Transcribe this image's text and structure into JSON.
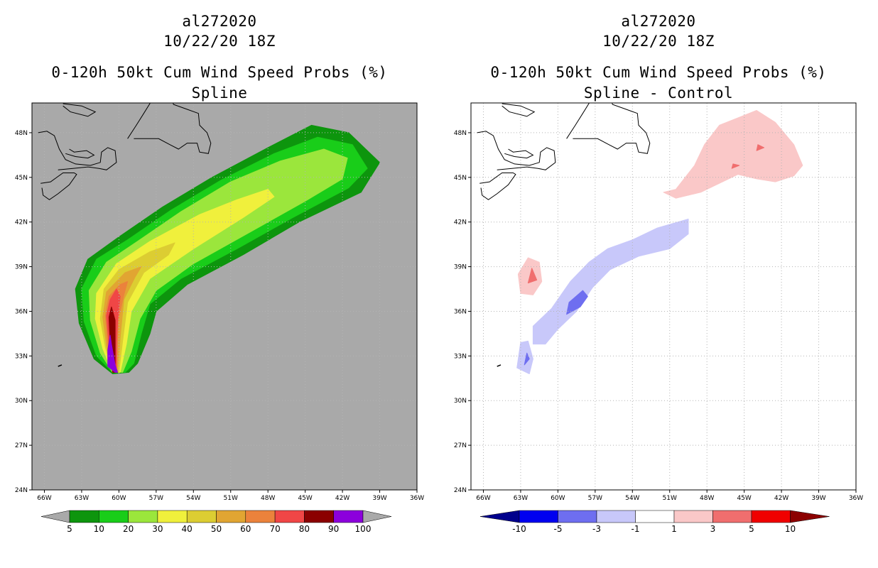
{
  "panels": [
    {
      "storm_id": "al272020",
      "datetime": "10/22/20 18Z",
      "product": "0-120h 50kt Cum Wind Speed Probs (%)",
      "subtitle": "Spline"
    },
    {
      "storm_id": "al272020",
      "datetime": "10/22/20 18Z",
      "product": "0-120h 50kt Cum Wind Speed Probs (%)",
      "subtitle": "Spline - Control"
    }
  ],
  "chart_data": [
    {
      "type": "heatmap",
      "title": "0-120h 50kt Cum Wind Speed Probs (%)",
      "subtitle": "Spline",
      "x_ticks": [
        "66W",
        "63W",
        "60W",
        "57W",
        "54W",
        "51W",
        "48W",
        "45W",
        "42W",
        "39W",
        "36W"
      ],
      "y_ticks": [
        "24N",
        "27N",
        "30N",
        "33N",
        "36N",
        "39N",
        "42N",
        "45N",
        "48N"
      ],
      "xlim": [
        -67,
        -36
      ],
      "ylim": [
        24,
        50
      ],
      "background_color": "#a9a9a9",
      "colorbar": {
        "labels": [
          "5",
          "10",
          "20",
          "30",
          "40",
          "50",
          "60",
          "70",
          "80",
          "90",
          "100"
        ],
        "colors": [
          "#0d950d",
          "#19cd19",
          "#9be63c",
          "#f0f03c",
          "#dccd32",
          "#e1a532",
          "#eb823c",
          "#f04646",
          "#8b0000",
          "#8c00dc"
        ]
      },
      "contours": [
        {
          "level": 5,
          "color": "#0d950d",
          "points": [
            [
              -59.2,
              31.9
            ],
            [
              -60.5,
              31.8
            ],
            [
              -62.0,
              32.8
            ],
            [
              -63.2,
              35.2
            ],
            [
              -63.5,
              37.5
            ],
            [
              -62.5,
              39.5
            ],
            [
              -60.0,
              41.0
            ],
            [
              -56.5,
              43.0
            ],
            [
              -52.5,
              45.0
            ],
            [
              -48.0,
              47.0
            ],
            [
              -44.5,
              48.5
            ],
            [
              -41.5,
              48.0
            ],
            [
              -39.0,
              46.0
            ],
            [
              -40.5,
              44.0
            ],
            [
              -45.5,
              42.0
            ],
            [
              -50.0,
              39.8
            ],
            [
              -54.5,
              37.8
            ],
            [
              -57.0,
              36.0
            ],
            [
              -57.5,
              34.5
            ],
            [
              -58.5,
              32.5
            ]
          ]
        },
        {
          "level": 10,
          "color": "#19cd19",
          "points": [
            [
              -59.5,
              31.9
            ],
            [
              -60.5,
              31.9
            ],
            [
              -61.8,
              33.0
            ],
            [
              -62.8,
              35.3
            ],
            [
              -63.0,
              37.5
            ],
            [
              -61.8,
              39.5
            ],
            [
              -59.3,
              40.8
            ],
            [
              -55.8,
              42.8
            ],
            [
              -51.8,
              44.8
            ],
            [
              -47.5,
              46.6
            ],
            [
              -44.0,
              47.7
            ],
            [
              -41.2,
              47.2
            ],
            [
              -40.0,
              45.6
            ],
            [
              -41.5,
              44.3
            ],
            [
              -46.0,
              42.3
            ],
            [
              -50.5,
              40.2
            ],
            [
              -55.0,
              38.2
            ],
            [
              -57.5,
              36.5
            ],
            [
              -58.2,
              34.5
            ],
            [
              -58.8,
              32.5
            ]
          ]
        },
        {
          "level": 20,
          "color": "#9be63c",
          "points": [
            [
              -59.7,
              31.9
            ],
            [
              -60.5,
              31.9
            ],
            [
              -61.5,
              33.2
            ],
            [
              -62.3,
              35.4
            ],
            [
              -62.4,
              37.4
            ],
            [
              -61.0,
              39.3
            ],
            [
              -58.5,
              40.7
            ],
            [
              -55.0,
              42.7
            ],
            [
              -51.0,
              44.7
            ],
            [
              -47.0,
              46.1
            ],
            [
              -43.5,
              46.9
            ],
            [
              -41.6,
              46.3
            ],
            [
              -42.0,
              44.9
            ],
            [
              -45.0,
              43.4
            ],
            [
              -49.5,
              41.3
            ],
            [
              -54.0,
              39.2
            ],
            [
              -57.0,
              37.4
            ],
            [
              -58.3,
              35.5
            ],
            [
              -59.0,
              33.3
            ]
          ]
        },
        {
          "level": 30,
          "color": "#f0f03c",
          "points": [
            [
              -59.9,
              31.9
            ],
            [
              -60.5,
              31.9
            ],
            [
              -61.3,
              33.5
            ],
            [
              -61.9,
              35.5
            ],
            [
              -61.8,
              37.2
            ],
            [
              -60.2,
              39.2
            ],
            [
              -57.5,
              40.7
            ],
            [
              -53.5,
              42.5
            ],
            [
              -50.5,
              43.5
            ],
            [
              -48.0,
              44.2
            ],
            [
              -47.5,
              43.7
            ],
            [
              -50.0,
              42.3
            ],
            [
              -54.0,
              40.2
            ],
            [
              -57.5,
              38.2
            ],
            [
              -59.0,
              36.0
            ],
            [
              -59.4,
              33.8
            ]
          ]
        },
        {
          "level": 40,
          "color": "#dccd32",
          "points": [
            [
              -60.0,
              31.9
            ],
            [
              -60.5,
              31.9
            ],
            [
              -61.1,
              33.6
            ],
            [
              -61.5,
              35.5
            ],
            [
              -61.2,
              37.5
            ],
            [
              -60.0,
              38.8
            ],
            [
              -57.5,
              40.0
            ],
            [
              -55.5,
              40.6
            ],
            [
              -56.0,
              39.8
            ],
            [
              -58.0,
              38.6
            ],
            [
              -59.3,
              36.6
            ],
            [
              -59.7,
              34.0
            ]
          ]
        },
        {
          "level": 50,
          "color": "#e1a532",
          "points": [
            [
              -60.1,
              31.9
            ],
            [
              -60.5,
              31.9
            ],
            [
              -61.0,
              33.7
            ],
            [
              -61.3,
              35.6
            ],
            [
              -61.0,
              37.3
            ],
            [
              -59.5,
              38.6
            ],
            [
              -58.2,
              39.0
            ],
            [
              -58.7,
              38.3
            ],
            [
              -59.6,
              36.8
            ],
            [
              -59.9,
              34.2
            ]
          ]
        },
        {
          "level": 60,
          "color": "#eb823c",
          "points": [
            [
              -60.2,
              31.9
            ],
            [
              -60.5,
              31.9
            ],
            [
              -60.9,
              33.8
            ],
            [
              -61.1,
              35.7
            ],
            [
              -60.8,
              37.0
            ],
            [
              -59.9,
              37.8
            ],
            [
              -59.3,
              38.0
            ],
            [
              -59.6,
              37.1
            ],
            [
              -60.0,
              35.6
            ],
            [
              -60.1,
              34.0
            ]
          ]
        },
        {
          "level": 70,
          "color": "#f04646",
          "points": [
            [
              -60.2,
              31.9
            ],
            [
              -60.5,
              31.9
            ],
            [
              -60.8,
              33.8
            ],
            [
              -61.0,
              35.7
            ],
            [
              -60.7,
              36.8
            ],
            [
              -60.2,
              37.5
            ],
            [
              -59.9,
              37.0
            ],
            [
              -60.1,
              35.4
            ],
            [
              -60.2,
              33.8
            ]
          ]
        },
        {
          "level": 80,
          "color": "#8b0000",
          "points": [
            [
              -60.3,
              31.9
            ],
            [
              -60.5,
              31.9
            ],
            [
              -60.7,
              33.8
            ],
            [
              -60.8,
              35.6
            ],
            [
              -60.6,
              36.3
            ],
            [
              -60.3,
              35.4
            ],
            [
              -60.3,
              33.6
            ]
          ]
        },
        {
          "level": 90,
          "color": "#8c00dc",
          "points": [
            [
              -60.3,
              31.9
            ],
            [
              -60.1,
              31.9
            ],
            [
              -60.3,
              32.4
            ],
            [
              -60.6,
              33.8
            ],
            [
              -60.7,
              34.4
            ],
            [
              -60.9,
              33.4
            ],
            [
              -60.9,
              32.3
            ]
          ]
        }
      ]
    },
    {
      "type": "heatmap",
      "title": "0-120h 50kt Cum Wind Speed Probs (%)",
      "subtitle": "Spline - Control",
      "x_ticks": [
        "66W",
        "63W",
        "60W",
        "57W",
        "54W",
        "51W",
        "48W",
        "45W",
        "42W",
        "39W",
        "36W"
      ],
      "y_ticks": [
        "24N",
        "27N",
        "30N",
        "33N",
        "36N",
        "39N",
        "42N",
        "45N",
        "48N"
      ],
      "xlim": [
        -67,
        -36
      ],
      "ylim": [
        24,
        50
      ],
      "background_color": "#ffffff",
      "colorbar": {
        "labels": [
          "-10",
          "-5",
          "-3",
          "-1",
          "1",
          "3",
          "5",
          "10"
        ],
        "colors": [
          "#00008c",
          "#0000f0",
          "#6e6ef0",
          "#c8c8fa",
          "#ffffff",
          "#fac8c8",
          "#f06e6e",
          "#f00000",
          "#8c0000"
        ]
      },
      "contours": [
        {
          "level": 1,
          "color": "#fac8c8",
          "name": "pink-patch-ne",
          "points": [
            [
              -50.5,
              44.2
            ],
            [
              -49.0,
              45.8
            ],
            [
              -48.2,
              47.2
            ],
            [
              -47.0,
              48.5
            ],
            [
              -45.5,
              49.0
            ],
            [
              -44.0,
              49.5
            ],
            [
              -42.5,
              48.7
            ],
            [
              -41.0,
              47.2
            ],
            [
              -40.3,
              45.8
            ],
            [
              -41.0,
              45.1
            ],
            [
              -42.5,
              44.7
            ],
            [
              -44.0,
              44.9
            ],
            [
              -45.5,
              45.2
            ],
            [
              -47.0,
              44.6
            ],
            [
              -48.5,
              44.0
            ],
            [
              -50.5,
              43.6
            ],
            [
              -51.5,
              44.0
            ]
          ]
        },
        {
          "level": 1,
          "color": "#fac8c8",
          "name": "pink-patch-w",
          "points": [
            [
              -63.0,
              37.2
            ],
            [
              -63.2,
              38.5
            ],
            [
              -62.4,
              39.6
            ],
            [
              -61.5,
              39.3
            ],
            [
              -61.3,
              38.0
            ],
            [
              -62.0,
              37.1
            ]
          ]
        },
        {
          "level": -1,
          "color": "#c8c8fa",
          "name": "blue-patch-main",
          "points": [
            [
              -62.0,
              33.8
            ],
            [
              -62.0,
              35.0
            ],
            [
              -60.5,
              36.2
            ],
            [
              -59.0,
              38.0
            ],
            [
              -57.5,
              39.3
            ],
            [
              -56.0,
              40.2
            ],
            [
              -54.0,
              40.8
            ],
            [
              -52.0,
              41.6
            ],
            [
              -49.5,
              42.2
            ],
            [
              -49.5,
              41.2
            ],
            [
              -51.0,
              40.2
            ],
            [
              -53.5,
              39.7
            ],
            [
              -55.8,
              38.8
            ],
            [
              -57.2,
              37.6
            ],
            [
              -58.5,
              36.0
            ],
            [
              -60.0,
              34.8
            ],
            [
              -61.0,
              33.8
            ]
          ]
        },
        {
          "level": -1,
          "color": "#c8c8fa",
          "name": "blue-patch-s",
          "points": [
            [
              -63.3,
              32.2
            ],
            [
              -63.0,
              33.9
            ],
            [
              -62.4,
              34.0
            ],
            [
              -62.0,
              32.8
            ],
            [
              -62.3,
              31.8
            ]
          ]
        },
        {
          "level": 3,
          "color": "#f06e6e",
          "name": "red-spot-w",
          "points": [
            [
              -62.4,
              37.9
            ],
            [
              -62.1,
              38.9
            ],
            [
              -61.7,
              38.1
            ]
          ]
        },
        {
          "level": 3,
          "color": "#f06e6e",
          "name": "red-spot-ne-1",
          "points": [
            [
              -44.0,
              46.8
            ],
            [
              -43.4,
              47.0
            ],
            [
              -43.9,
              47.2
            ]
          ]
        },
        {
          "level": 3,
          "color": "#f06e6e",
          "name": "red-spot-ne-2",
          "points": [
            [
              -46.0,
              45.6
            ],
            [
              -45.4,
              45.8
            ],
            [
              -45.9,
              45.9
            ]
          ]
        },
        {
          "level": -3,
          "color": "#6e6ef0",
          "name": "blue-spot-mid",
          "points": [
            [
              -59.3,
              35.8
            ],
            [
              -59.1,
              36.6
            ],
            [
              -58.0,
              37.4
            ],
            [
              -57.6,
              37.0
            ],
            [
              -58.2,
              36.3
            ]
          ]
        },
        {
          "level": -3,
          "color": "#6e6ef0",
          "name": "blue-spot-s",
          "points": [
            [
              -62.7,
              32.4
            ],
            [
              -62.5,
              33.2
            ],
            [
              -62.3,
              32.8
            ]
          ]
        }
      ]
    }
  ]
}
